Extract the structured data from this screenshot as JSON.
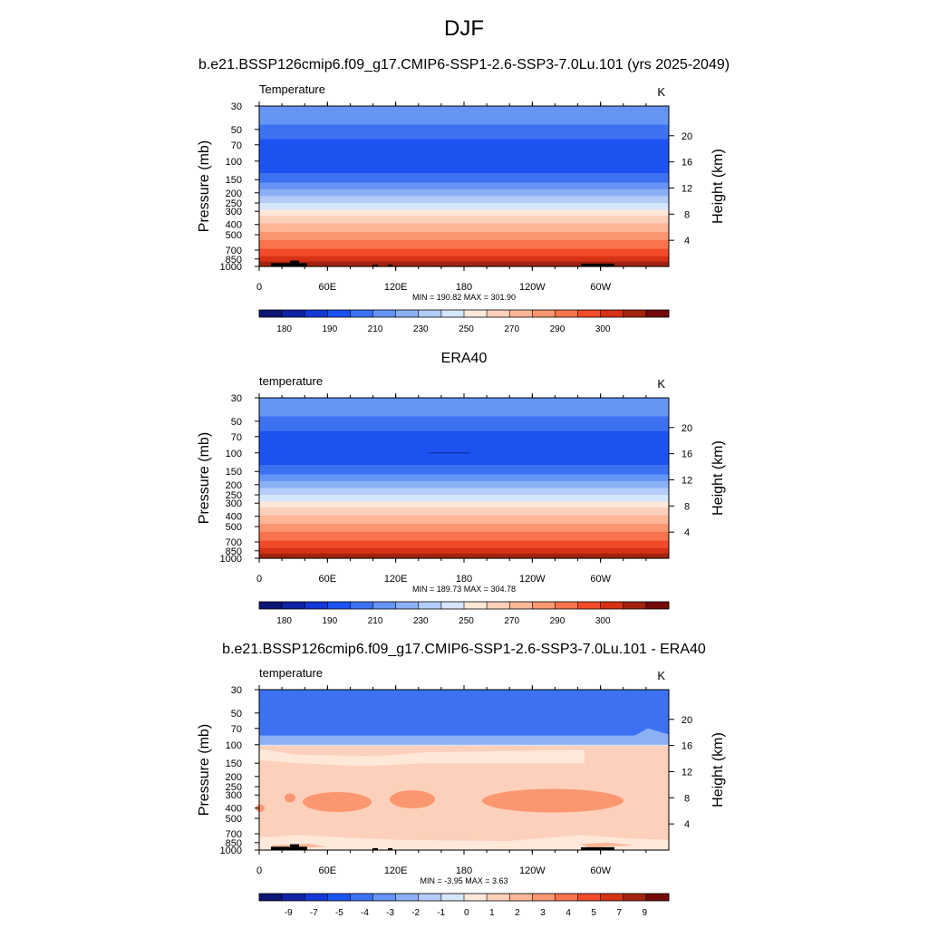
{
  "header": {
    "title": "DJF",
    "case_title": "b.e21.BSSP126cmip6.f09_g17.CMIP6-SSP1-2.6-SSP3-7.0Lu.101 (yrs 2025-2049)",
    "obs_title": "ERA40",
    "diff_title": "b.e21.BSSP126cmip6.f09_g17.CMIP6-SSP1-2.6-SSP3-7.0Lu.101 - ERA40"
  },
  "colors": {
    "temp_scale": [
      "#0b1573",
      "#1022a5",
      "#1438d6",
      "#1c52f0",
      "#3c72f2",
      "#6594f4",
      "#8cb0f6",
      "#b3ccf8",
      "#d6e6fb",
      "#fde8da",
      "#fdd0bb",
      "#fdb696",
      "#fb9770",
      "#f9744d",
      "#f24b2a",
      "#d63216",
      "#a3230f",
      "#730b0b"
    ],
    "diff_scale": [
      "#0b1573",
      "#1022a5",
      "#1438d6",
      "#1c52f0",
      "#3c72f2",
      "#6594f4",
      "#8cb0f6",
      "#b3ccf8",
      "#d6e6fb",
      "#fde8da",
      "#fdd0bb",
      "#fdb696",
      "#fb9770",
      "#f9744d",
      "#f24b2a",
      "#d63216",
      "#a3230f",
      "#730b0b"
    ],
    "topography": "#000000"
  },
  "chart_data": [
    {
      "type": "heatmap",
      "name": "model",
      "left_label": "Temperature",
      "units": "K",
      "xlabel": "",
      "ylabel": "Pressure (mb)",
      "y2label": "Height (km)",
      "x_ticks": [
        "0",
        "60E",
        "120E",
        "180",
        "120W",
        "60W"
      ],
      "y_ticks": [
        30,
        50,
        70,
        100,
        150,
        200,
        250,
        300,
        400,
        500,
        700,
        850,
        1000
      ],
      "y_range": [
        30,
        1000
      ],
      "y2_ticks": [
        4,
        8,
        12,
        16,
        20
      ],
      "stats": "MIN = 190.82  MAX = 301.90",
      "color_bins": [
        18,
        19,
        19,
        19,
        19,
        19,
        19,
        18,
        17,
        15,
        14,
        13,
        12,
        10,
        9,
        8,
        7,
        6
      ],
      "levels": [
        180,
        185,
        190,
        195,
        200,
        210,
        220,
        230,
        240,
        250,
        260,
        270,
        275,
        280,
        290,
        295,
        300
      ],
      "colorbar_labels": [
        "180",
        "190",
        "210",
        "230",
        "250",
        "270",
        "290",
        "300"
      ]
    },
    {
      "type": "heatmap",
      "name": "obs",
      "left_label": "temperature",
      "units": "K",
      "xlabel": "",
      "ylabel": "Pressure (mb)",
      "y2label": "Height (km)",
      "x_ticks": [
        "0",
        "60E",
        "120E",
        "180",
        "120W",
        "60W"
      ],
      "y_ticks": [
        30,
        50,
        70,
        100,
        150,
        200,
        250,
        300,
        400,
        500,
        700,
        850,
        1000
      ],
      "y_range": [
        30,
        1000
      ],
      "y2_ticks": [
        4,
        8,
        12,
        16,
        20
      ],
      "stats": "MIN = 189.73  MAX = 304.78",
      "levels": [
        180,
        185,
        190,
        195,
        200,
        210,
        220,
        230,
        240,
        250,
        260,
        270,
        275,
        280,
        290,
        295,
        300
      ],
      "colorbar_labels": [
        "180",
        "190",
        "210",
        "230",
        "250",
        "270",
        "290",
        "300"
      ]
    },
    {
      "type": "heatmap",
      "name": "diff",
      "left_label": "temperature",
      "units": "K",
      "xlabel": "",
      "ylabel": "Pressure (mb)",
      "y2label": "Height (km)",
      "x_ticks": [
        "0",
        "60E",
        "120E",
        "180",
        "120W",
        "60W"
      ],
      "y_ticks": [
        30,
        50,
        70,
        100,
        150,
        200,
        250,
        300,
        400,
        500,
        700,
        850,
        1000
      ],
      "y_range": [
        30,
        1000
      ],
      "y2_ticks": [
        4,
        8,
        12,
        16,
        20
      ],
      "stats": "MIN =  -3.95  MAX =   3.63",
      "levels": [
        -9,
        -7,
        -5,
        -4,
        -3,
        -2,
        -1,
        0,
        1,
        2,
        3,
        4,
        5,
        7,
        9
      ],
      "colorbar_labels": [
        "-9",
        "-7",
        "-5",
        "-4",
        "-3",
        "-2",
        "-1",
        "0",
        "1",
        "2",
        "3",
        "4",
        "5",
        "7",
        "9"
      ]
    }
  ]
}
